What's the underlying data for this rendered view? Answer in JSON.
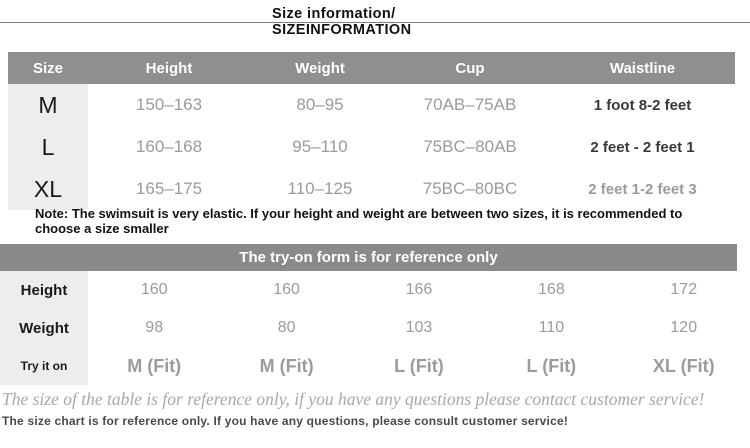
{
  "header": {
    "title_line1": "Size information/",
    "title_line2": "SIZEINFORMATION"
  },
  "size_table": {
    "columns": [
      "Size",
      "Height",
      "Weight",
      "Cup",
      "Waistline"
    ],
    "rows": [
      {
        "size": "M",
        "height": "150–163",
        "weight": "80–95",
        "cup": "70AB–75AB",
        "waistline": "1 foot 8-2 feet"
      },
      {
        "size": "L",
        "height": "160–168",
        "weight": "95–110",
        "cup": "75BC–80AB",
        "waistline": "2 feet - 2 feet 1"
      },
      {
        "size": "XL",
        "height": "165–175",
        "weight": "110–125",
        "cup": "75BC–80BC",
        "waistline": "2 feet 1-2 feet 3"
      }
    ]
  },
  "note": "Note: The swimsuit is very elastic. If your height and weight are between two sizes, it is recommended to choose a size smaller",
  "tryon": {
    "banner": "The try-on form is for reference only",
    "rows": [
      {
        "label": "Height",
        "values": [
          "160",
          "160",
          "166",
          "168",
          "172"
        ]
      },
      {
        "label": "Weight",
        "values": [
          "98",
          "80",
          "103",
          "110",
          "120"
        ]
      },
      {
        "label": "Try it on",
        "values": [
          "M (Fit)",
          "M (Fit)",
          "L (Fit)",
          "L (Fit)",
          "XL (Fit)"
        ]
      }
    ]
  },
  "footers": {
    "italic": "The size of the table is for reference only, if you have any questions please contact customer service!",
    "small": "The size chart is for reference only. If you have any questions, please consult customer service!"
  },
  "colors": {
    "table_header_bg": "#8f8f8f",
    "banner_bg": "#8a8a8a",
    "label_column_bg": "#ededed",
    "value_text": "#9b9b9b",
    "dark_text": "#1a1a1a"
  }
}
